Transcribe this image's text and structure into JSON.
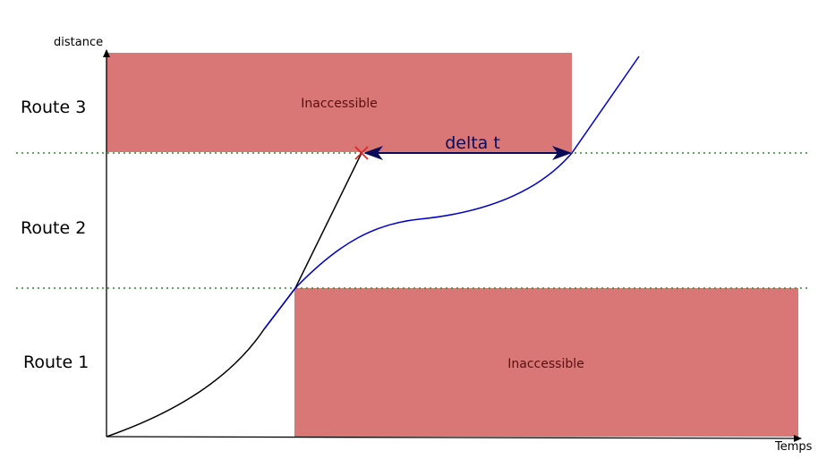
{
  "axes": {
    "y_label": "distance",
    "x_label": "Temps"
  },
  "routes": [
    {
      "label": "Route 3"
    },
    {
      "label": "Route 2"
    },
    {
      "label": "Route 1"
    }
  ],
  "zones": [
    {
      "label": "Inaccessible"
    },
    {
      "label": "Inaccessible"
    }
  ],
  "annotation": {
    "delta_label": "delta t"
  },
  "colors": {
    "zone_fill": "#d97676",
    "boundary_line": "#2e8b2e",
    "blue_curve": "#0000cc",
    "black_curve": "#000000",
    "arrow": "#0a0a5a",
    "cross_marker": "#e02020"
  }
}
